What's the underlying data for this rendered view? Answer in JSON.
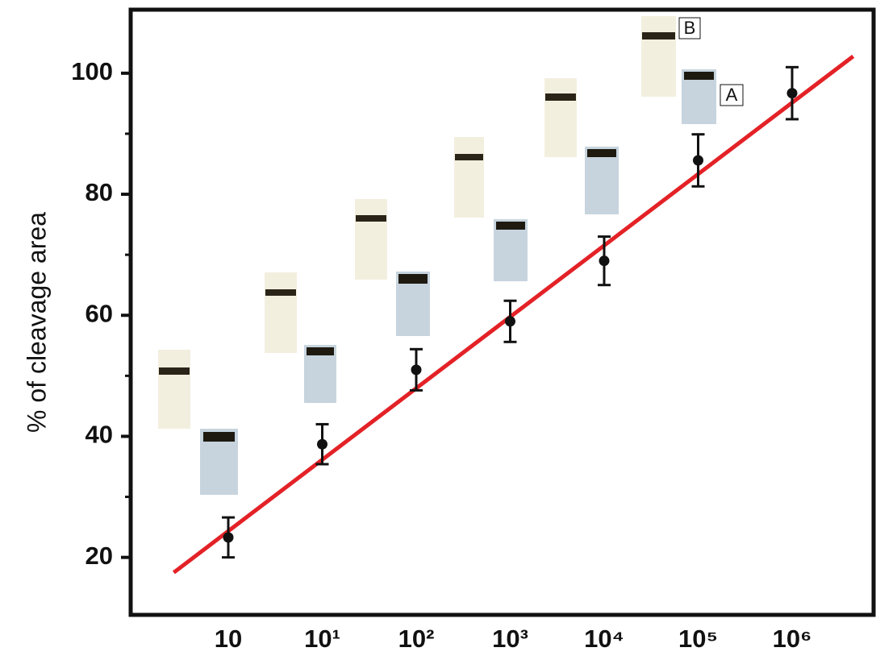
{
  "chart_data": {
    "type": "scatter",
    "ylabel": "% of cleavage area",
    "categories": [
      "10",
      "10¹",
      "10²",
      "10³",
      "10⁴",
      "10⁵",
      "10⁶"
    ],
    "values": [
      23.3,
      38.7,
      51,
      59,
      69,
      85.6,
      96.7
    ],
    "errors": [
      3.3,
      3.3,
      3.4,
      3.4,
      4,
      4.3,
      4.3
    ],
    "color": "#111111",
    "fit": {
      "color": "#e32227",
      "x": [
        -0.58,
        6.65
      ],
      "y": [
        17.5,
        102.8
      ]
    },
    "ylim": [
      10.5,
      110.5
    ],
    "yticks": [
      20,
      40,
      60,
      80,
      100
    ],
    "yminorticks": [
      30,
      50,
      70,
      90
    ],
    "annotations": [
      "B",
      "A"
    ]
  }
}
